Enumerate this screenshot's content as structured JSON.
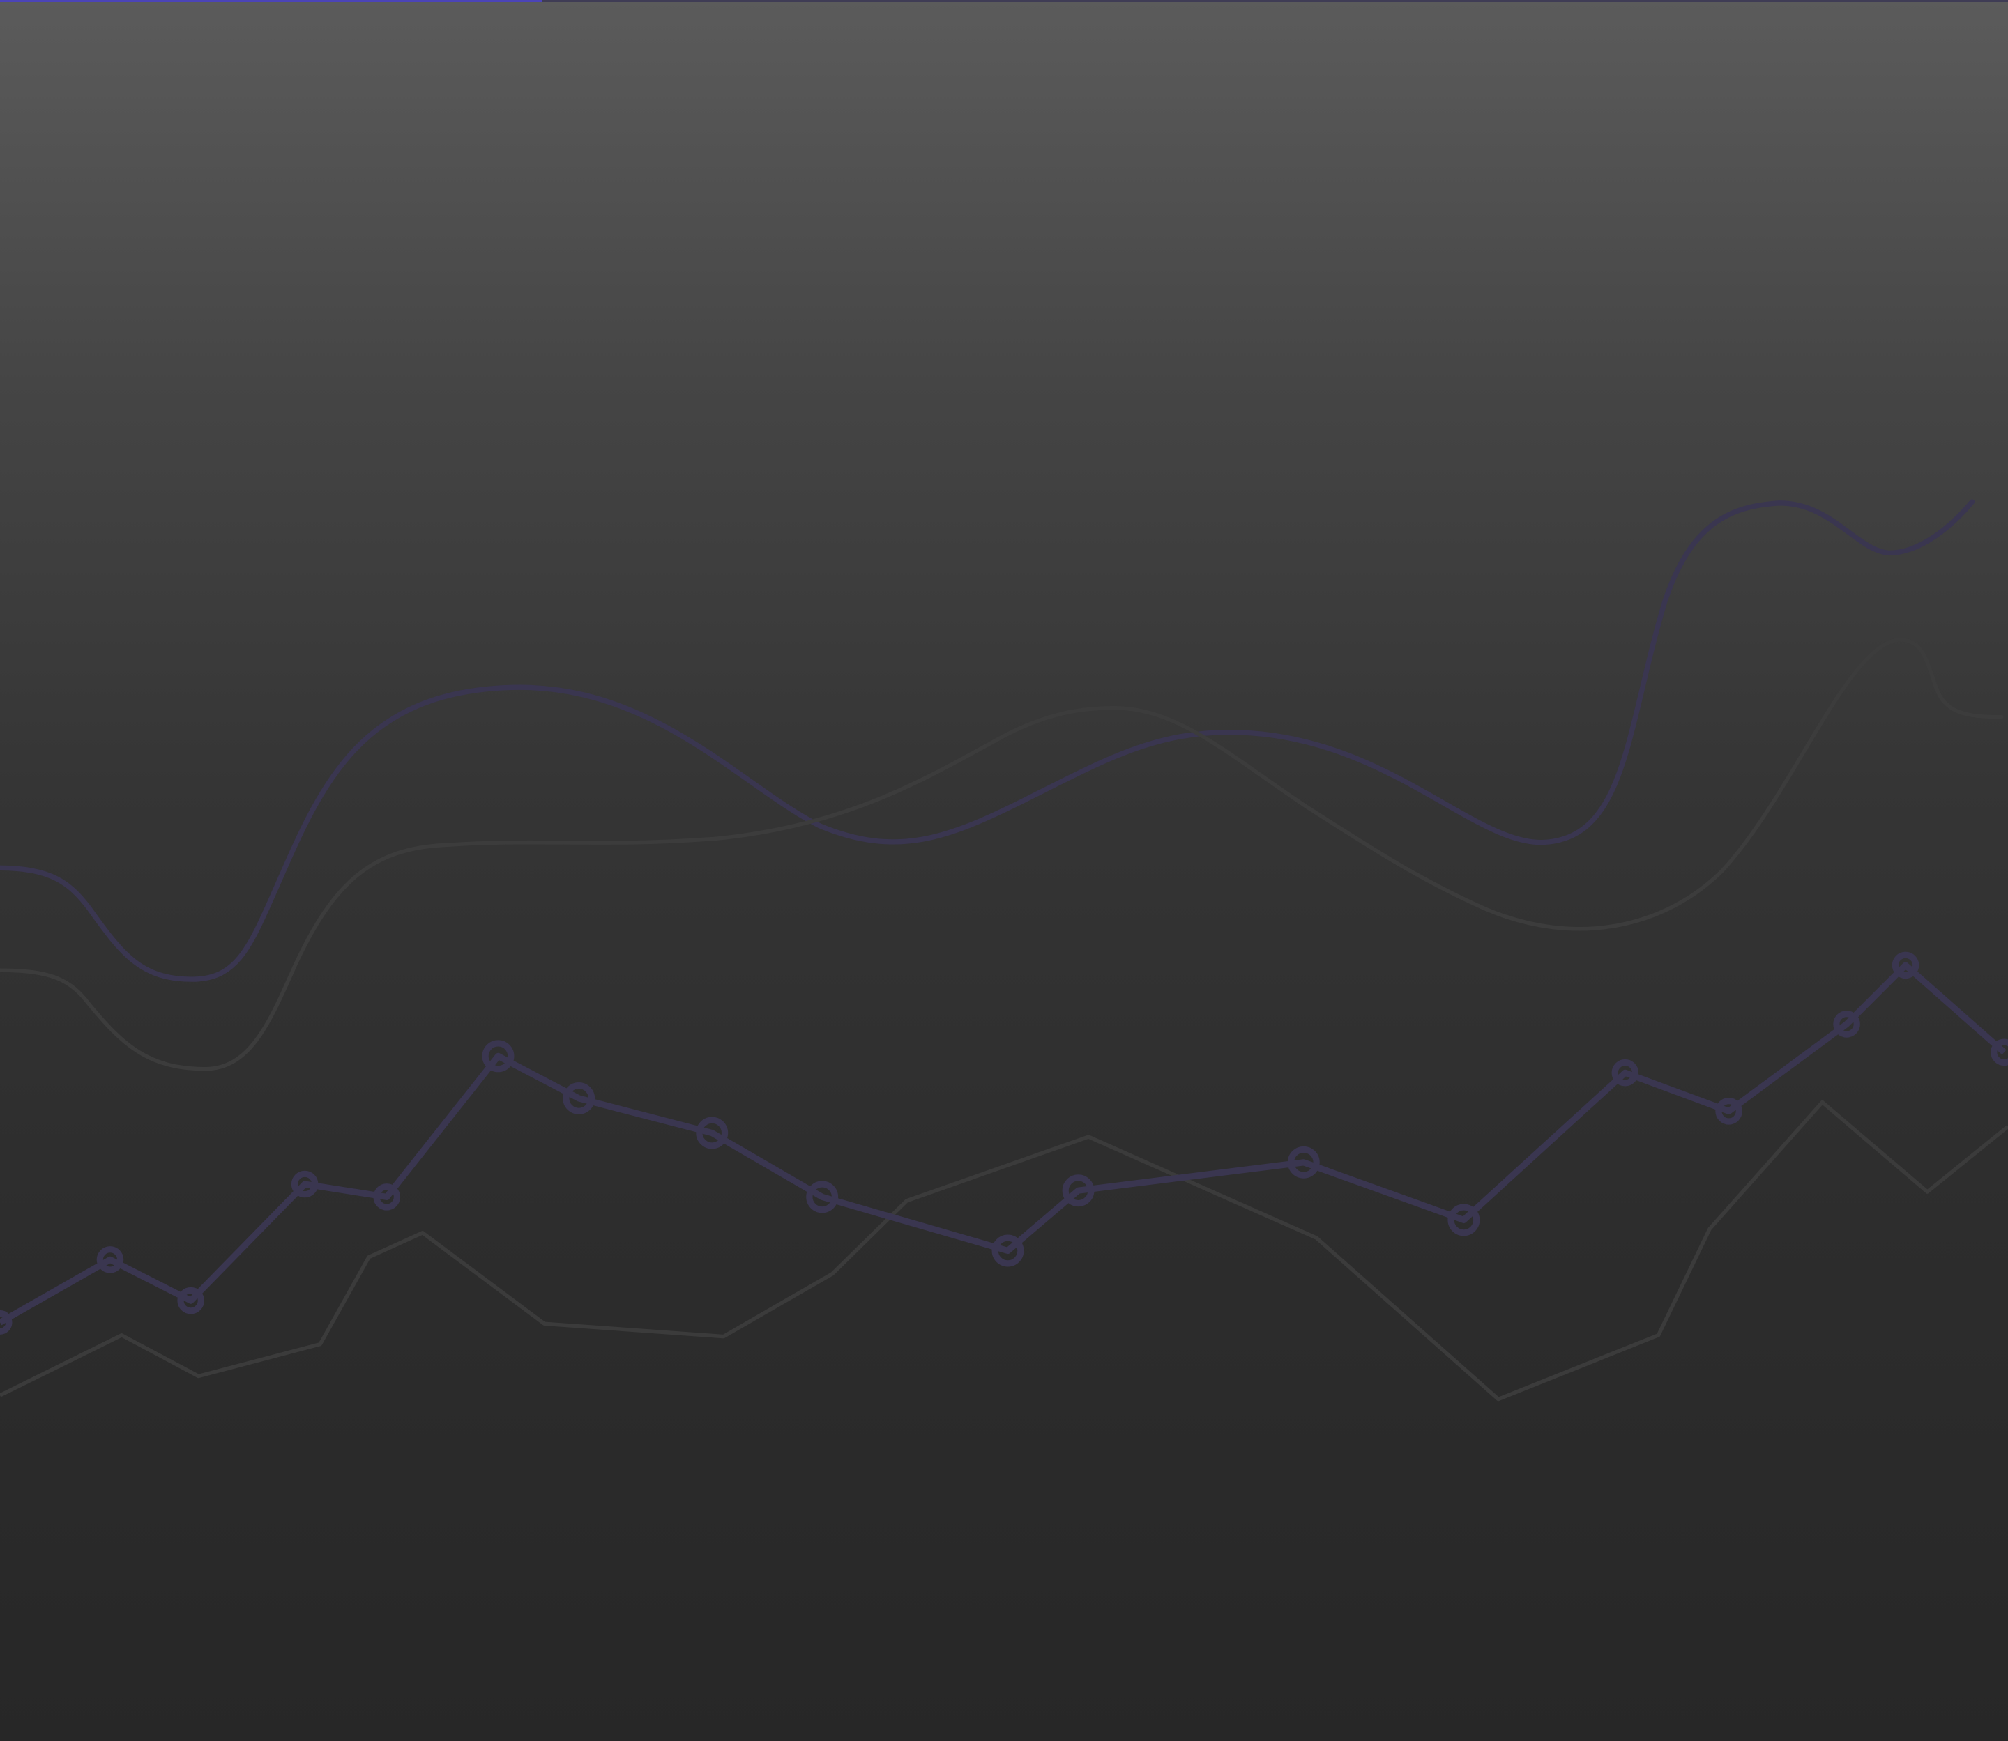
{
  "page": {
    "background_colors": [
      "#5b5b5b",
      "#3a3a3a",
      "#272727"
    ],
    "loading_progress": 0.27,
    "progress_color": "#4b44b8",
    "progress_track_color": "#3f3c55"
  },
  "decor": {
    "accent_line_color": "#3a3650",
    "muted_line_color": "#3c3c3c",
    "marker_icon": "circle-marker-icon"
  }
}
